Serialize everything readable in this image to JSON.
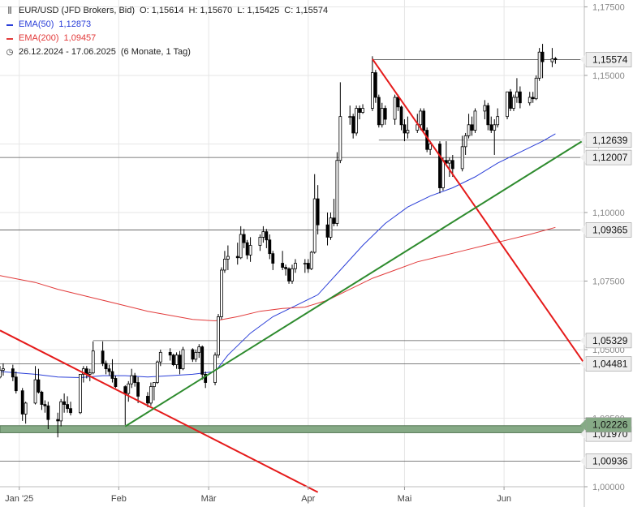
{
  "legend": {
    "instrument": "EUR/USD (JFD Brokers, Bid)",
    "open": "O: 1,15614",
    "high": "H: 1,15670",
    "low": "L: 1,15425",
    "close": "C: 1,15574",
    "ema50_label": "EMA(50)",
    "ema50_value": "1,12873",
    "ema200_label": "EMA(200)",
    "ema200_value": "1,09457",
    "range": "26.12.2024 - 17.06.2025",
    "period": "(6 Monate, 1 Tag)"
  },
  "colors": {
    "ema50": "#2b3fd8",
    "ema200": "#e23b3b",
    "downtrend": "#e51b1b",
    "uptrend": "#2e8b2e",
    "support_zone": "#86aa86",
    "candle": "#000000",
    "label_bg": "#eeeeee"
  },
  "chart_data": {
    "type": "candlestick",
    "title": "",
    "xlabel": "",
    "ylabel": "",
    "ylim": [
      1.0,
      1.1775
    ],
    "y_ticks": [
      "1,17500",
      "1,15000",
      "1,12500",
      "1,10000",
      "1,07500",
      "1,05000",
      "1,02500",
      "1,00000"
    ],
    "x_ticks": [
      {
        "label": "Jan '25",
        "date": "2025-01-01"
      },
      {
        "label": "Feb",
        "date": "2025-02-01"
      },
      {
        "label": "Mär",
        "date": "2025-03-01"
      },
      {
        "label": "Apr",
        "date": "2025-04-01"
      },
      {
        "label": "Mai",
        "date": "2025-05-01"
      },
      {
        "label": "Jun",
        "date": "2025-06-01"
      }
    ],
    "x_range": [
      "2024-12-26",
      "2025-06-26"
    ],
    "candles": [
      [
        "2024-12-26",
        1.04,
        1.044,
        1.0395,
        1.0425
      ],
      [
        "2024-12-27",
        1.0425,
        1.045,
        1.0405,
        1.043
      ],
      [
        "2024-12-30",
        1.043,
        1.0445,
        1.0385,
        1.04
      ],
      [
        "2024-12-31",
        1.04,
        1.042,
        1.034,
        1.035
      ],
      [
        "2025-01-02",
        1.035,
        1.036,
        1.024,
        1.0265
      ],
      [
        "2025-01-03",
        1.0265,
        1.031,
        1.023,
        1.0305
      ],
      [
        "2025-01-06",
        1.0305,
        1.044,
        1.03,
        1.039
      ],
      [
        "2025-01-07",
        1.039,
        1.043,
        1.034,
        1.0345
      ],
      [
        "2025-01-08",
        1.0345,
        1.035,
        1.028,
        1.03
      ],
      [
        "2025-01-09",
        1.03,
        1.0315,
        1.027,
        1.0295
      ],
      [
        "2025-01-10",
        1.0295,
        1.031,
        1.021,
        1.0245
      ],
      [
        "2025-01-13",
        1.0245,
        1.027,
        1.018,
        1.024
      ],
      [
        "2025-01-14",
        1.024,
        1.032,
        1.022,
        1.031
      ],
      [
        "2025-01-15",
        1.031,
        1.034,
        1.027,
        1.03
      ],
      [
        "2025-01-16",
        1.03,
        1.033,
        1.027,
        1.0285
      ],
      [
        "2025-01-17",
        1.0285,
        1.031,
        1.026,
        1.027
      ],
      [
        "2025-01-20",
        1.027,
        1.041,
        1.0265,
        1.041
      ],
      [
        "2025-01-21",
        1.041,
        1.044,
        1.038,
        1.043
      ],
      [
        "2025-01-22",
        1.043,
        1.044,
        1.0395,
        1.041
      ],
      [
        "2025-01-23",
        1.041,
        1.043,
        1.0385,
        1.0415
      ],
      [
        "2025-01-24",
        1.0415,
        1.053,
        1.041,
        1.0495
      ],
      [
        "2025-01-27",
        1.0495,
        1.053,
        1.044,
        1.045
      ],
      [
        "2025-01-28",
        1.045,
        1.046,
        1.041,
        1.043
      ],
      [
        "2025-01-29",
        1.043,
        1.0445,
        1.0405,
        1.042
      ],
      [
        "2025-01-30",
        1.042,
        1.0465,
        1.038,
        1.0395
      ],
      [
        "2025-01-31",
        1.0395,
        1.0405,
        1.036,
        1.0365
      ],
      [
        "2025-02-03",
        1.0365,
        1.037,
        1.0225,
        1.034
      ],
      [
        "2025-02-04",
        1.034,
        1.0385,
        1.031,
        1.0375
      ],
      [
        "2025-02-05",
        1.0375,
        1.043,
        1.036,
        1.0405
      ],
      [
        "2025-02-06",
        1.0405,
        1.0415,
        1.0365,
        1.038
      ],
      [
        "2025-02-07",
        1.038,
        1.04,
        1.0305,
        1.033
      ],
      [
        "2025-02-10",
        1.033,
        1.0345,
        1.029,
        1.0305
      ],
      [
        "2025-02-11",
        1.0305,
        1.038,
        1.0295,
        1.0365
      ],
      [
        "2025-02-12",
        1.0365,
        1.038,
        1.0315,
        1.038
      ],
      [
        "2025-02-13",
        1.038,
        1.046,
        1.0375,
        1.0455
      ],
      [
        "2025-02-14",
        1.0455,
        1.05,
        1.044,
        1.049
      ],
      [
        "2025-02-17",
        1.049,
        1.0505,
        1.046,
        1.048
      ],
      [
        "2025-02-18",
        1.048,
        1.0485,
        1.044,
        1.0445
      ],
      [
        "2025-02-19",
        1.0445,
        1.049,
        1.043,
        1.048
      ],
      [
        "2025-02-20",
        1.048,
        1.0495,
        1.041,
        1.043
      ],
      [
        "2025-02-21",
        1.043,
        1.051,
        1.0425,
        1.05
      ],
      [
        "2025-02-24",
        1.05,
        1.0505,
        1.0455,
        1.0465
      ],
      [
        "2025-02-25",
        1.0465,
        1.05,
        1.0455,
        1.049
      ],
      [
        "2025-02-26",
        1.049,
        1.052,
        1.047,
        1.051
      ],
      [
        "2025-02-27",
        1.051,
        1.0515,
        1.039,
        1.041
      ],
      [
        "2025-02-28",
        1.041,
        1.042,
        1.036,
        1.038
      ],
      [
        "2025-03-03",
        1.038,
        1.049,
        1.037,
        1.048
      ],
      [
        "2025-03-04",
        1.048,
        1.063,
        1.047,
        1.062
      ],
      [
        "2025-03-05",
        1.062,
        1.08,
        1.061,
        1.079
      ],
      [
        "2025-03-06",
        1.079,
        1.086,
        1.078,
        1.083
      ],
      [
        "2025-03-07",
        1.083,
        1.088,
        1.079,
        1.084
      ],
      [
        "2025-03-10",
        1.084,
        1.089,
        1.081,
        1.0835
      ],
      [
        "2025-03-11",
        1.0835,
        1.095,
        1.083,
        1.092
      ],
      [
        "2025-03-12",
        1.092,
        1.094,
        1.087,
        1.089
      ],
      [
        "2025-03-13",
        1.089,
        1.09,
        1.083,
        1.0845
      ],
      [
        "2025-03-14",
        1.0845,
        1.091,
        1.082,
        1.088
      ],
      [
        "2025-03-17",
        1.088,
        1.092,
        1.086,
        1.091
      ],
      [
        "2025-03-18",
        1.091,
        1.095,
        1.089,
        1.093
      ],
      [
        "2025-03-19",
        1.093,
        1.094,
        1.087,
        1.09
      ],
      [
        "2025-03-20",
        1.09,
        1.092,
        1.083,
        1.085
      ],
      [
        "2025-03-21",
        1.085,
        1.086,
        1.079,
        1.0815
      ],
      [
        "2025-03-24",
        1.0815,
        1.086,
        1.079,
        1.08
      ],
      [
        "2025-03-25",
        1.08,
        1.081,
        1.077,
        1.0795
      ],
      [
        "2025-03-26",
        1.0795,
        1.08,
        1.074,
        1.075
      ],
      [
        "2025-03-27",
        1.075,
        1.081,
        1.074,
        1.0795
      ],
      [
        "2025-03-28",
        1.0795,
        1.083,
        1.078,
        1.0815
      ],
      [
        "2025-03-31",
        1.0815,
        1.083,
        1.078,
        1.0815
      ],
      [
        "2025-04-01",
        1.0815,
        1.083,
        1.078,
        1.0795
      ],
      [
        "2025-04-02",
        1.0795,
        1.086,
        1.079,
        1.0855
      ],
      [
        "2025-04-03",
        1.0855,
        1.114,
        1.085,
        1.105
      ],
      [
        "2025-04-04",
        1.105,
        1.11,
        1.092,
        1.0955
      ],
      [
        "2025-04-07",
        1.0955,
        1.1,
        1.088,
        1.091
      ],
      [
        "2025-04-08",
        1.091,
        1.1,
        1.09,
        1.098
      ],
      [
        "2025-04-09",
        1.098,
        1.105,
        1.095,
        1.096
      ],
      [
        "2025-04-10",
        1.096,
        1.122,
        1.095,
        1.119
      ],
      [
        "2025-04-11",
        1.119,
        1.1475,
        1.118,
        1.135
      ],
      [
        "2025-04-14",
        1.135,
        1.139,
        1.132,
        1.135
      ],
      [
        "2025-04-15",
        1.135,
        1.136,
        1.127,
        1.129
      ],
      [
        "2025-04-16",
        1.129,
        1.139,
        1.128,
        1.138
      ],
      [
        "2025-04-17",
        1.138,
        1.139,
        1.134,
        1.1365
      ],
      [
        "2025-04-18",
        1.1365,
        1.1395,
        1.136,
        1.138
      ],
      [
        "2025-04-21",
        1.138,
        1.157,
        1.137,
        1.151
      ],
      [
        "2025-04-22",
        1.151,
        1.152,
        1.14,
        1.142
      ],
      [
        "2025-04-23",
        1.142,
        1.143,
        1.131,
        1.132
      ],
      [
        "2025-04-24",
        1.132,
        1.14,
        1.131,
        1.138
      ],
      [
        "2025-04-25",
        1.138,
        1.139,
        1.132,
        1.134
      ],
      [
        "2025-04-28",
        1.134,
        1.143,
        1.132,
        1.142
      ],
      [
        "2025-04-29",
        1.142,
        1.143,
        1.137,
        1.1385
      ],
      [
        "2025-04-30",
        1.1385,
        1.139,
        1.13,
        1.132
      ],
      [
        "2025-05-01",
        1.132,
        1.134,
        1.126,
        1.129
      ],
      [
        "2025-05-02",
        1.129,
        1.135,
        1.127,
        1.13
      ],
      [
        "2025-05-05",
        1.13,
        1.136,
        1.129,
        1.132
      ],
      [
        "2025-05-06",
        1.132,
        1.138,
        1.13,
        1.137
      ],
      [
        "2025-05-07",
        1.137,
        1.138,
        1.129,
        1.13
      ],
      [
        "2025-05-08",
        1.13,
        1.131,
        1.122,
        1.123
      ],
      [
        "2025-05-09",
        1.123,
        1.126,
        1.121,
        1.125
      ],
      [
        "2025-05-12",
        1.125,
        1.126,
        1.107,
        1.109
      ],
      [
        "2025-05-13",
        1.109,
        1.12,
        1.108,
        1.119
      ],
      [
        "2025-05-14",
        1.119,
        1.126,
        1.117,
        1.118
      ],
      [
        "2025-05-15",
        1.118,
        1.12,
        1.113,
        1.119
      ],
      [
        "2025-05-16",
        1.119,
        1.121,
        1.113,
        1.116
      ],
      [
        "2025-05-19",
        1.116,
        1.128,
        1.115,
        1.124
      ],
      [
        "2025-05-20",
        1.124,
        1.129,
        1.121,
        1.128
      ],
      [
        "2025-05-21",
        1.128,
        1.136,
        1.127,
        1.132
      ],
      [
        "2025-05-22",
        1.132,
        1.135,
        1.128,
        1.13
      ],
      [
        "2025-05-23",
        1.13,
        1.138,
        1.129,
        1.137
      ],
      [
        "2025-05-26",
        1.137,
        1.141,
        1.134,
        1.139
      ],
      [
        "2025-05-27",
        1.139,
        1.14,
        1.13,
        1.132
      ],
      [
        "2025-05-28",
        1.132,
        1.135,
        1.129,
        1.13
      ],
      [
        "2025-05-29",
        1.13,
        1.134,
        1.121,
        1.132
      ],
      [
        "2025-05-30",
        1.132,
        1.138,
        1.131,
        1.135
      ],
      [
        "2025-06-02",
        1.135,
        1.144,
        1.134,
        1.144
      ],
      [
        "2025-06-03",
        1.144,
        1.145,
        1.137,
        1.138
      ],
      [
        "2025-06-04",
        1.138,
        1.143,
        1.137,
        1.142
      ],
      [
        "2025-06-05",
        1.142,
        1.149,
        1.14,
        1.144
      ],
      [
        "2025-06-06",
        1.144,
        1.146,
        1.138,
        1.14
      ],
      [
        "2025-06-09",
        1.14,
        1.144,
        1.139,
        1.142
      ],
      [
        "2025-06-10",
        1.142,
        1.144,
        1.14,
        1.1415
      ],
      [
        "2025-06-11",
        1.1415,
        1.15,
        1.141,
        1.149
      ],
      [
        "2025-06-12",
        1.149,
        1.16,
        1.148,
        1.1585
      ],
      [
        "2025-06-13",
        1.1585,
        1.1615,
        1.149,
        1.155
      ],
      [
        "2025-06-16",
        1.155,
        1.16,
        1.153,
        1.156
      ],
      [
        "2025-06-17",
        1.15614,
        1.1567,
        1.15425,
        1.15574
      ]
    ],
    "series": [
      {
        "name": "EMA(50)",
        "color": "#2b3fd8",
        "points": [
          [
            "2024-12-26",
            1.042
          ],
          [
            "2025-01-06",
            1.041
          ],
          [
            "2025-01-13",
            1.04
          ],
          [
            "2025-01-20",
            1.0398
          ],
          [
            "2025-01-27",
            1.0405
          ],
          [
            "2025-02-03",
            1.0405
          ],
          [
            "2025-02-10",
            1.04
          ],
          [
            "2025-02-17",
            1.0405
          ],
          [
            "2025-02-24",
            1.041
          ],
          [
            "2025-03-03",
            1.042
          ],
          [
            "2025-03-07",
            1.048
          ],
          [
            "2025-03-14",
            1.056
          ],
          [
            "2025-03-21",
            1.062
          ],
          [
            "2025-03-28",
            1.066
          ],
          [
            "2025-04-04",
            1.07
          ],
          [
            "2025-04-11",
            1.079
          ],
          [
            "2025-04-18",
            1.088
          ],
          [
            "2025-04-25",
            1.096
          ],
          [
            "2025-05-02",
            1.102
          ],
          [
            "2025-05-09",
            1.106
          ],
          [
            "2025-05-16",
            1.109
          ],
          [
            "2025-05-23",
            1.113
          ],
          [
            "2025-05-30",
            1.118
          ],
          [
            "2025-06-06",
            1.122
          ],
          [
            "2025-06-13",
            1.126
          ],
          [
            "2025-06-17",
            1.12873
          ]
        ]
      },
      {
        "name": "EMA(200)",
        "color": "#e23b3b",
        "points": [
          [
            "2024-12-26",
            1.077
          ],
          [
            "2025-01-06",
            1.0745
          ],
          [
            "2025-01-13",
            1.072
          ],
          [
            "2025-01-20",
            1.07
          ],
          [
            "2025-01-27",
            1.068
          ],
          [
            "2025-02-03",
            1.066
          ],
          [
            "2025-02-10",
            1.064
          ],
          [
            "2025-02-17",
            1.0625
          ],
          [
            "2025-02-24",
            1.061
          ],
          [
            "2025-03-03",
            1.0605
          ],
          [
            "2025-03-10",
            1.062
          ],
          [
            "2025-03-17",
            1.064
          ],
          [
            "2025-03-24",
            1.065
          ],
          [
            "2025-03-31",
            1.0655
          ],
          [
            "2025-04-07",
            1.068
          ],
          [
            "2025-04-14",
            1.072
          ],
          [
            "2025-04-21",
            1.076
          ],
          [
            "2025-04-28",
            1.079
          ],
          [
            "2025-05-05",
            1.082
          ],
          [
            "2025-05-12",
            1.084
          ],
          [
            "2025-05-19",
            1.086
          ],
          [
            "2025-05-26",
            1.088
          ],
          [
            "2025-06-02",
            1.09
          ],
          [
            "2025-06-09",
            1.092
          ],
          [
            "2025-06-17",
            1.09457
          ]
        ]
      }
    ],
    "trendlines": [
      {
        "color": "downtrend",
        "from": [
          "2024-12-26",
          1.057
        ],
        "to": [
          "2025-04-04",
          0.998
        ]
      },
      {
        "color": "downtrend",
        "from": [
          "2025-04-21",
          1.156
        ],
        "to": [
          "2025-06-26",
          1.045
        ]
      },
      {
        "color": "uptrend",
        "from": [
          "2025-02-03",
          1.022
        ],
        "to": [
          "2025-06-26",
          1.1265
        ]
      }
    ],
    "horizontal_levels": [
      {
        "value": 1.15574,
        "label": "1,15574",
        "from": "2025-04-21",
        "kind": "price"
      },
      {
        "value": 1.12639,
        "label": "1,12639",
        "from": "2025-04-23",
        "kind": "level"
      },
      {
        "value": 1.12007,
        "label": "1,12007",
        "from": "2024-12-26",
        "kind": "level"
      },
      {
        "value": 1.09365,
        "label": "1,09365",
        "from": "2024-12-26",
        "kind": "level"
      },
      {
        "value": 1.05329,
        "label": "1,05329",
        "from": "2025-01-24",
        "kind": "level"
      },
      {
        "value": 1.04481,
        "label": "1,04481",
        "from": "2024-12-26",
        "kind": "level"
      },
      {
        "value": 1.00936,
        "label": "1,00936",
        "from": "2024-12-26",
        "kind": "level"
      }
    ],
    "support_zone": {
      "low": 1.0197,
      "high": 1.02226,
      "labels": [
        "1,02226",
        "1,01970"
      ]
    }
  }
}
